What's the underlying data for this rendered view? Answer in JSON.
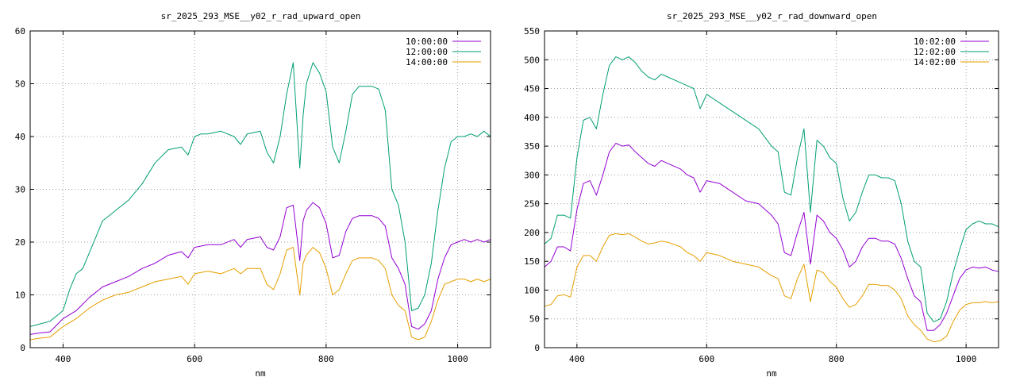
{
  "chart_data": [
    {
      "type": "line",
      "title": "sr_2025_293_MSE__y02_r_rad_upward_open",
      "xlabel": "nm",
      "ylabel": "",
      "xlim": [
        350,
        1050
      ],
      "ylim": [
        0,
        60
      ],
      "xticks": [
        400,
        600,
        800,
        1000
      ],
      "yticks": [
        0,
        10,
        20,
        30,
        40,
        50,
        60
      ],
      "grid": true,
      "legend_position": "top-right",
      "series": [
        {
          "name": "10:00:00",
          "color": "#9400d3",
          "x": [
            350,
            365,
            380,
            400,
            420,
            440,
            460,
            480,
            500,
            520,
            540,
            560,
            580,
            590,
            600,
            620,
            640,
            660,
            670,
            680,
            700,
            710,
            720,
            730,
            740,
            750,
            760,
            765,
            770,
            780,
            790,
            800,
            810,
            820,
            830,
            840,
            850,
            860,
            870,
            880,
            890,
            900,
            910,
            920,
            930,
            940,
            950,
            960,
            970,
            980,
            990,
            1000,
            1010,
            1020,
            1030,
            1040,
            1050
          ],
          "values": [
            2.5,
            2.8,
            3,
            5.5,
            7,
            9.5,
            11.5,
            12.5,
            13.5,
            15,
            16,
            17.5,
            18.2,
            17,
            19,
            19.5,
            19.5,
            20.5,
            19,
            20.5,
            21,
            19,
            18.5,
            21,
            26.5,
            27,
            16.5,
            24,
            26,
            27.5,
            26.5,
            23.5,
            17,
            17.5,
            22,
            24.5,
            25,
            25,
            25,
            24.5,
            23,
            17,
            15,
            12,
            4,
            3.5,
            4.5,
            7,
            13,
            17,
            19.5,
            20,
            20.5,
            20,
            20.5,
            20,
            20.5
          ]
        },
        {
          "name": "12:00:00",
          "color": "#009e73",
          "x": [
            350,
            365,
            380,
            400,
            410,
            420,
            430,
            440,
            450,
            460,
            480,
            500,
            520,
            540,
            560,
            580,
            590,
            600,
            610,
            620,
            640,
            660,
            670,
            680,
            700,
            710,
            720,
            730,
            740,
            750,
            760,
            765,
            770,
            780,
            790,
            800,
            810,
            820,
            830,
            840,
            850,
            860,
            870,
            880,
            890,
            900,
            910,
            920,
            930,
            940,
            950,
            960,
            970,
            980,
            990,
            1000,
            1010,
            1020,
            1030,
            1040,
            1050
          ],
          "values": [
            4,
            4.5,
            5,
            7,
            11,
            14,
            15,
            18,
            21,
            24,
            26,
            28,
            31,
            35,
            37.5,
            38,
            36.5,
            40,
            40.5,
            40.5,
            41,
            40,
            38.5,
            40.5,
            41,
            37,
            35,
            40,
            48,
            54,
            34,
            44,
            50,
            54,
            52,
            48.5,
            38,
            35,
            41,
            48,
            49.5,
            49.5,
            49.5,
            49,
            45,
            30,
            27,
            20,
            7,
            7.5,
            10,
            16,
            26,
            34,
            39,
            40,
            40,
            40.5,
            40,
            41,
            40
          ]
        },
        {
          "name": "14:00:00",
          "color": "#e69f00",
          "x": [
            350,
            365,
            380,
            400,
            420,
            440,
            460,
            480,
            500,
            520,
            540,
            560,
            580,
            590,
            600,
            620,
            640,
            660,
            670,
            680,
            700,
            710,
            720,
            730,
            740,
            750,
            760,
            765,
            770,
            780,
            790,
            800,
            810,
            820,
            830,
            840,
            850,
            860,
            870,
            880,
            890,
            900,
            910,
            920,
            930,
            940,
            950,
            960,
            970,
            980,
            990,
            1000,
            1010,
            1020,
            1030,
            1040,
            1050
          ],
          "values": [
            1.5,
            1.8,
            2,
            4,
            5.5,
            7.5,
            9,
            10,
            10.5,
            11.5,
            12.5,
            13,
            13.5,
            12,
            14,
            14.5,
            14,
            15,
            14,
            15,
            15,
            12,
            11,
            14,
            18.5,
            19,
            10,
            16,
            17.5,
            19,
            18,
            15,
            10,
            11,
            14,
            16.5,
            17,
            17,
            17,
            16.5,
            15,
            10,
            8,
            7,
            2,
            1.5,
            2,
            5,
            9,
            12,
            12.5,
            13,
            13,
            12.5,
            13,
            12.5,
            13
          ]
        }
      ]
    },
    {
      "type": "line",
      "title": "sr_2025_293_MSE__y02_r_rad_downward_open",
      "xlabel": "nm",
      "ylabel": "",
      "xlim": [
        350,
        1050
      ],
      "ylim": [
        0,
        550
      ],
      "xticks": [
        400,
        600,
        800,
        1000
      ],
      "yticks": [
        0,
        50,
        100,
        150,
        200,
        250,
        300,
        350,
        400,
        450,
        500,
        550
      ],
      "grid": true,
      "legend_position": "top-right",
      "series": [
        {
          "name": "10:02:00",
          "color": "#9400d3",
          "x": [
            350,
            360,
            370,
            380,
            390,
            400,
            410,
            420,
            430,
            440,
            450,
            460,
            470,
            480,
            490,
            500,
            510,
            520,
            530,
            540,
            560,
            570,
            580,
            590,
            600,
            620,
            640,
            660,
            680,
            700,
            710,
            720,
            730,
            740,
            750,
            760,
            770,
            780,
            790,
            800,
            810,
            820,
            830,
            840,
            850,
            860,
            870,
            880,
            890,
            900,
            910,
            920,
            930,
            940,
            950,
            960,
            970,
            980,
            990,
            1000,
            1010,
            1020,
            1030,
            1040,
            1050
          ],
          "values": [
            140,
            150,
            175,
            175,
            168,
            240,
            285,
            290,
            265,
            300,
            340,
            355,
            350,
            352,
            340,
            330,
            320,
            315,
            325,
            320,
            310,
            300,
            295,
            270,
            290,
            285,
            270,
            255,
            250,
            230,
            215,
            165,
            160,
            200,
            235,
            145,
            230,
            220,
            200,
            190,
            170,
            140,
            150,
            175,
            190,
            190,
            185,
            185,
            180,
            155,
            120,
            90,
            80,
            30,
            30,
            40,
            60,
            90,
            120,
            135,
            140,
            138,
            140,
            135,
            132
          ]
        },
        {
          "name": "12:02:00",
          "color": "#009e73",
          "x": [
            350,
            360,
            370,
            380,
            390,
            400,
            410,
            420,
            430,
            440,
            450,
            460,
            470,
            480,
            490,
            500,
            510,
            520,
            530,
            540,
            560,
            570,
            580,
            590,
            600,
            620,
            640,
            660,
            680,
            700,
            710,
            720,
            730,
            740,
            750,
            760,
            770,
            780,
            790,
            800,
            810,
            820,
            830,
            840,
            850,
            860,
            870,
            880,
            890,
            900,
            910,
            920,
            930,
            940,
            950,
            960,
            970,
            980,
            990,
            1000,
            1010,
            1020,
            1030,
            1040,
            1050
          ],
          "values": [
            180,
            190,
            230,
            230,
            225,
            330,
            395,
            400,
            380,
            440,
            490,
            505,
            500,
            505,
            495,
            480,
            470,
            465,
            475,
            470,
            460,
            455,
            450,
            415,
            440,
            425,
            410,
            395,
            380,
            350,
            340,
            270,
            265,
            330,
            380,
            235,
            360,
            350,
            330,
            320,
            260,
            220,
            235,
            270,
            300,
            300,
            295,
            295,
            290,
            250,
            185,
            150,
            140,
            60,
            45,
            50,
            80,
            130,
            170,
            205,
            215,
            220,
            215,
            215,
            210
          ]
        },
        {
          "name": "14:02:00",
          "color": "#e69f00",
          "x": [
            350,
            360,
            370,
            380,
            390,
            400,
            410,
            420,
            430,
            440,
            450,
            460,
            470,
            480,
            490,
            500,
            510,
            520,
            530,
            540,
            560,
            570,
            580,
            590,
            600,
            620,
            640,
            660,
            680,
            700,
            710,
            720,
            730,
            740,
            750,
            760,
            770,
            780,
            790,
            800,
            810,
            820,
            830,
            840,
            850,
            860,
            870,
            880,
            890,
            900,
            910,
            920,
            930,
            940,
            950,
            960,
            970,
            980,
            990,
            1000,
            1010,
            1020,
            1030,
            1040,
            1050
          ],
          "values": [
            72,
            75,
            90,
            92,
            88,
            140,
            160,
            160,
            150,
            175,
            195,
            198,
            196,
            198,
            192,
            185,
            180,
            182,
            185,
            183,
            175,
            165,
            160,
            150,
            165,
            160,
            150,
            145,
            140,
            125,
            120,
            90,
            85,
            120,
            145,
            80,
            135,
            130,
            115,
            105,
            85,
            70,
            75,
            90,
            110,
            110,
            108,
            108,
            100,
            85,
            55,
            40,
            30,
            15,
            10,
            12,
            20,
            45,
            65,
            75,
            78,
            78,
            80,
            78,
            80
          ]
        }
      ]
    }
  ]
}
